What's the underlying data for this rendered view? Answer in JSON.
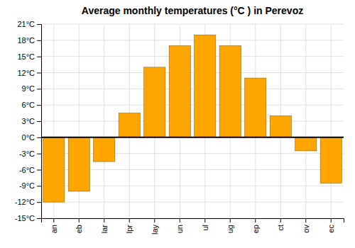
{
  "chart_data": {
    "type": "bar",
    "title": "Average monthly temperatures (°C ) in Perevoz",
    "categories": [
      "an",
      "eb",
      "lar",
      "lpr",
      "lay",
      "un",
      "ul",
      "ug",
      "ep",
      "ct",
      "ov",
      "ec"
    ],
    "values": [
      -12,
      -10,
      -4.5,
      4.5,
      13,
      17,
      19,
      17,
      11,
      4,
      -2.5,
      -8.5
    ],
    "color": "#FFA500",
    "ylim": [
      -15,
      21
    ],
    "yticks": [
      {
        "value": -15,
        "label": "-15°C"
      },
      {
        "value": -12,
        "label": "-12°C"
      },
      {
        "value": -9,
        "label": "-9°C"
      },
      {
        "value": -6,
        "label": "-6°C"
      },
      {
        "value": -3,
        "label": "-3°C"
      },
      {
        "value": 0,
        "label": "0°C"
      },
      {
        "value": 3,
        "label": "3°C"
      },
      {
        "value": 6,
        "label": "6°C"
      },
      {
        "value": 9,
        "label": "9°C"
      },
      {
        "value": 12,
        "label": "12°C"
      },
      {
        "value": 15,
        "label": "15°C"
      },
      {
        "value": 18,
        "label": "18°C"
      },
      {
        "value": 21,
        "label": "21°C"
      }
    ],
    "grid": true
  }
}
